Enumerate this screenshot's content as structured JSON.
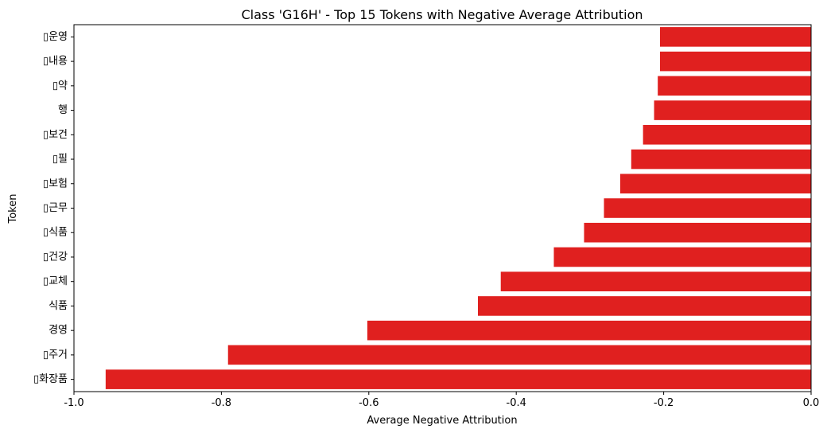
{
  "chart_data": {
    "type": "bar",
    "orientation": "horizontal",
    "title": "Class 'G16H' - Top 15 Tokens with Negative Average Attribution",
    "xlabel": "Average Negative Attribution",
    "ylabel": "Token",
    "xlim": [
      -1.0,
      0.0
    ],
    "x_ticks": [
      -1.0,
      -0.8,
      -0.6,
      -0.4,
      -0.2,
      0.0
    ],
    "x_tick_labels": [
      "-1.0",
      "-0.8",
      "-0.6",
      "-0.4",
      "-0.2",
      "0.0"
    ],
    "grid": false,
    "bar_color": "#e0201f",
    "categories": [
      "▯운영",
      "▯내용",
      "▯약",
      "행",
      "▯보건",
      "▯필",
      "▯보험",
      "▯근무",
      "▯식품",
      "▯건강",
      "▯교체",
      "식품",
      "경영",
      "▯주거",
      "▯화장품"
    ],
    "values": [
      -0.205,
      -0.205,
      -0.208,
      -0.213,
      -0.228,
      -0.244,
      -0.259,
      -0.281,
      -0.308,
      -0.349,
      -0.421,
      -0.452,
      -0.602,
      -0.791,
      -0.957
    ]
  }
}
